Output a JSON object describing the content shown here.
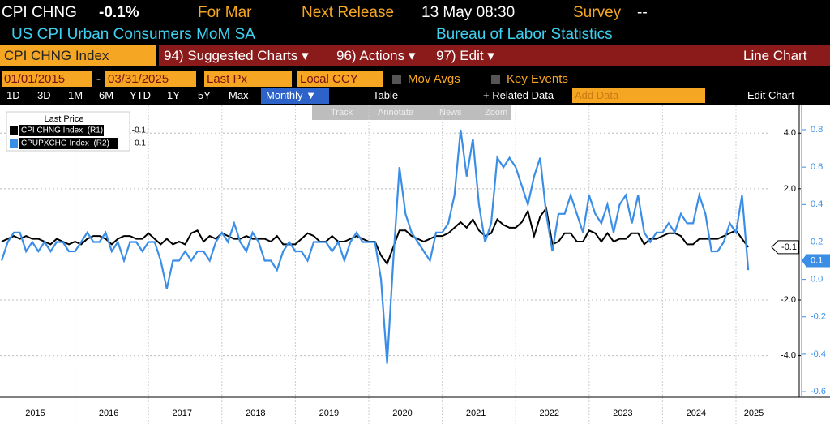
{
  "header": {
    "ticker": "CPI CHNG",
    "change": "-0.1%",
    "for_label": "For Mar",
    "release_label": "Next Release",
    "release_time": "13 May 08:30",
    "survey_label": "Survey",
    "survey_value": "--",
    "description": "US CPI Urban Consumers MoM SA",
    "source": "Bureau of Labor Statistics"
  },
  "menu": {
    "security": "CPI CHNG Index",
    "suggested": "94) Suggested Charts ▾",
    "actions": "96) Actions ▾",
    "edit": "97) Edit ▾",
    "chart_type": "Line Chart"
  },
  "settings": {
    "start_date": "01/01/2015",
    "dash": "-",
    "end_date": "03/31/2025",
    "field": "Last Px",
    "currency": "Local CCY",
    "mov_avgs": "Mov Avgs",
    "key_events": "Key Events"
  },
  "toolbar": {
    "periods": [
      "1D",
      "3D",
      "1M",
      "6M",
      "YTD",
      "1Y",
      "5Y",
      "Max"
    ],
    "frequency": "Monthly ▼",
    "table": "Table",
    "related": "+ Related Data",
    "add_data": "Add Data",
    "edit_chart": "Edit Chart",
    "tools": [
      "Track",
      "Annotate",
      "News",
      "Zoom"
    ]
  },
  "chart_data": {
    "type": "line",
    "legend_title": "Last Price",
    "xtick_labels": [
      "2015",
      "2016",
      "2017",
      "2018",
      "2019",
      "2020",
      "2021",
      "2022",
      "2023",
      "2024",
      "2025"
    ],
    "ylim": [
      -5.5,
      5
    ],
    "yticks": [
      {
        "value": 4,
        "label": "4.0"
      },
      {
        "value": 2,
        "label": "2.0"
      },
      {
        "value": -2,
        "label": "-2.0"
      },
      {
        "value": -4,
        "label": "-4.0"
      }
    ],
    "y2lim": [
      -0.63,
      0.93
    ],
    "y2ticks": [
      0.8,
      0.6,
      0.4,
      0.2,
      {
        "value": 0,
        "label": "0.0"
      },
      -0.2,
      -0.4,
      -0.6
    ],
    "grid": true,
    "series": [
      {
        "name": "CPI CHNG Index  (R1)",
        "color": "#000000",
        "axis": "y",
        "last": -0.1,
        "values": [
          0.1,
          0.2,
          0.3,
          0.2,
          0.3,
          0.2,
          0.2,
          0.1,
          0.0,
          0.2,
          0.1,
          0.0,
          0.1,
          0.0,
          0.2,
          0.3,
          0.3,
          0.2,
          0.0,
          0.2,
          0.3,
          0.3,
          0.2,
          0.2,
          0.4,
          0.2,
          0.0,
          0.2,
          0.0,
          0.1,
          0.0,
          0.4,
          0.5,
          0.1,
          0.3,
          0.2,
          0.4,
          0.3,
          0.2,
          0.2,
          0.3,
          0.2,
          0.2,
          0.2,
          0.1,
          0.3,
          0.0,
          0.0,
          0.0,
          0.2,
          0.4,
          0.3,
          0.1,
          0.1,
          0.3,
          0.1,
          0.1,
          0.2,
          0.3,
          0.2,
          0.1,
          0.1,
          -0.4,
          -0.7,
          -0.1,
          0.5,
          0.5,
          0.3,
          0.2,
          0.1,
          0.2,
          0.3,
          0.3,
          0.4,
          0.6,
          0.8,
          0.6,
          0.9,
          0.5,
          0.3,
          0.4,
          0.9,
          0.7,
          0.6,
          0.6,
          0.8,
          1.2,
          0.3,
          1.0,
          1.3,
          0.0,
          0.1,
          0.4,
          0.4,
          0.1,
          0.1,
          0.5,
          0.4,
          0.1,
          0.4,
          0.1,
          0.2,
          0.2,
          0.4,
          0.4,
          0.0,
          0.2,
          0.2,
          0.3,
          0.4,
          0.4,
          0.3,
          0.0,
          0.0,
          0.2,
          0.2,
          0.2,
          0.2,
          0.3,
          0.4,
          0.5,
          0.2,
          -0.1
        ]
      },
      {
        "name": "CPUPXCHG Index  (R2)",
        "color": "#3a8ee6",
        "axis": "y2",
        "last": 0.1,
        "values": [
          0.1,
          0.2,
          0.25,
          0.25,
          0.15,
          0.2,
          0.15,
          0.2,
          0.15,
          0.2,
          0.2,
          0.15,
          0.15,
          0.2,
          0.25,
          0.2,
          0.2,
          0.25,
          0.15,
          0.2,
          0.1,
          0.2,
          0.2,
          0.15,
          0.2,
          0.2,
          0.1,
          -0.05,
          0.1,
          0.1,
          0.15,
          0.1,
          0.15,
          0.15,
          0.1,
          0.2,
          0.25,
          0.2,
          0.3,
          0.2,
          0.15,
          0.25,
          0.2,
          0.1,
          0.1,
          0.05,
          0.15,
          0.2,
          0.15,
          0.15,
          0.1,
          0.2,
          0.2,
          0.2,
          0.15,
          0.2,
          0.1,
          0.2,
          0.25,
          0.2,
          0.2,
          0.2,
          0.0,
          -0.45,
          0.1,
          0.6,
          0.35,
          0.25,
          0.2,
          0.15,
          0.1,
          0.25,
          0.25,
          0.3,
          0.45,
          0.8,
          0.55,
          0.75,
          0.4,
          0.2,
          0.3,
          0.65,
          0.6,
          0.65,
          0.6,
          0.5,
          0.4,
          0.55,
          0.65,
          0.35,
          0.15,
          0.35,
          0.35,
          0.45,
          0.35,
          0.25,
          0.45,
          0.35,
          0.3,
          0.4,
          0.25,
          0.4,
          0.45,
          0.3,
          0.45,
          0.25,
          0.2,
          0.25,
          0.25,
          0.3,
          0.25,
          0.35,
          0.3,
          0.3,
          0.45,
          0.35,
          0.15,
          0.15,
          0.2,
          0.3,
          0.25,
          0.45,
          0.05
        ]
      }
    ]
  }
}
